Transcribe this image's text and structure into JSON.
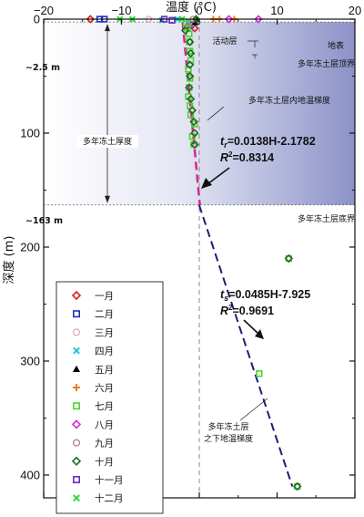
{
  "chart_data": {
    "type": "scatter",
    "xlabel": "温度 (°C)",
    "ylabel": "深度 (m)",
    "xlim": [
      -20,
      20
    ],
    "ylim": [
      0,
      420
    ],
    "x_ticks": [
      "−20",
      "−10",
      "0",
      "10",
      "20"
    ],
    "y_ticks": [
      "0",
      "100",
      "200",
      "300",
      "400"
    ],
    "y_axis_inverted": true,
    "x_axis_position": "top",
    "legend_placement": "bottom-left",
    "shaded_region": {
      "from_depth": 2.5,
      "to_depth": 163,
      "color": "#8c92c8"
    },
    "series": [
      {
        "name": "一月",
        "marker": "diamond-open",
        "color": "#d42020",
        "points": [
          [
            -14,
            0
          ],
          [
            -1.2,
            4
          ],
          [
            -0.6,
            8
          ]
        ]
      },
      {
        "name": "二月",
        "marker": "square-open",
        "color": "#1f2fbf",
        "points": [
          [
            -12.8,
            0
          ],
          [
            -12.2,
            0
          ],
          [
            -1.1,
            5
          ]
        ]
      },
      {
        "name": "三月",
        "marker": "circle-open",
        "color": "#d7a0c8",
        "points": [
          [
            -6.5,
            0
          ],
          [
            -1,
            4
          ]
        ]
      },
      {
        "name": "四月",
        "marker": "x",
        "color": "#18c8d8",
        "points": [
          [
            -4.8,
            1
          ],
          [
            -2.8,
            0
          ],
          [
            -1.4,
            2
          ]
        ]
      },
      {
        "name": "五月",
        "marker": "triangle",
        "color": "#000000",
        "points": [
          [
            -0.3,
            0
          ],
          [
            -0.5,
            3
          ]
        ]
      },
      {
        "name": "六月",
        "marker": "plus",
        "color": "#f07a1a",
        "points": [
          [
            1.8,
            0
          ],
          [
            2.6,
            0
          ],
          [
            4.5,
            0
          ]
        ]
      },
      {
        "name": "七月",
        "marker": "square-open",
        "color": "#4cd431",
        "points": [
          [
            -1.7,
            4
          ],
          [
            -1.5,
            8
          ],
          [
            -1.3,
            13
          ],
          [
            -1.3,
            20
          ],
          [
            -1.2,
            28
          ],
          [
            -1.1,
            36
          ],
          [
            -1.4,
            44
          ],
          [
            -1.2,
            52
          ],
          [
            -1.3,
            60
          ],
          [
            -1.4,
            68
          ],
          [
            -1.2,
            76
          ],
          [
            -1.1,
            84
          ],
          [
            -0.6,
            92
          ],
          [
            -0.9,
            103
          ],
          [
            -0.7,
            110
          ],
          [
            11.5,
            210
          ],
          [
            7.7,
            311
          ],
          [
            12.6,
            410
          ]
        ]
      },
      {
        "name": "八月",
        "marker": "diamond-open",
        "color": "#d72ad7",
        "points": [
          [
            7.6,
            0
          ],
          [
            3.8,
            0
          ]
        ]
      },
      {
        "name": "九月",
        "marker": "circle-open",
        "color": "#b07070",
        "points": [
          [
            -0.8,
            0
          ],
          [
            -1.5,
            6
          ]
        ]
      },
      {
        "name": "十月",
        "marker": "diamond-open",
        "color": "#1d6b1d",
        "points": [
          [
            -0.4,
            0
          ],
          [
            -1.8,
            10
          ],
          [
            -1.2,
            20
          ],
          [
            -1.1,
            30
          ],
          [
            -1.2,
            40
          ],
          [
            -1.2,
            50
          ],
          [
            -1.3,
            60
          ],
          [
            -1.1,
            70
          ],
          [
            -0.9,
            80
          ],
          [
            -0.7,
            90
          ],
          [
            -0.6,
            100
          ],
          [
            -0.6,
            110
          ],
          [
            11.5,
            210
          ],
          [
            12.6,
            410
          ]
        ]
      },
      {
        "name": "十一月",
        "marker": "square-open",
        "color": "#6a2ac4",
        "points": [
          [
            -4.5,
            0
          ],
          [
            -3.5,
            1
          ]
        ]
      },
      {
        "name": "十二月",
        "marker": "x",
        "color": "#2adc36",
        "points": [
          [
            -10.2,
            0
          ],
          [
            -8.6,
            0
          ],
          [
            -2.2,
            0
          ]
        ]
      }
    ],
    "fits": [
      {
        "label": "多年冻土层内地温梯度",
        "equation_main": "t",
        "equation_sub": "r",
        "equation_rest": "=0.0138H-2.1782",
        "r2": "=0.8314",
        "color": "#d9268d",
        "slope": 0.0138,
        "intercept": -2.1782,
        "depth_range": [
          2.5,
          163
        ]
      },
      {
        "label": "多年冻土层之下地温梯度",
        "equation_main": "t",
        "equation_sub": "s",
        "equation_rest": "=0.0485H-7.925",
        "r2": "=0.9691",
        "color": "#1a1f73",
        "slope": 0.0485,
        "intercept": -7.925,
        "depth_range": [
          163,
          410
        ]
      }
    ],
    "annotations": {
      "active_layer": "活动层",
      "surface": "地表",
      "permafrost_top": "多年冻土层顶界",
      "permafrost_bottom": "多年冻土层底界",
      "thickness": "多年冻土厚度",
      "top_depth_label": "~2.5 m",
      "bottom_depth_label": "~163 m",
      "gradient_inside_label": "多年冻土层内地温梯度",
      "gradient_below_label_line1": "多年冻土层",
      "gradient_below_label_line2": "之下地温梯度",
      "r2_prefix": "R",
      "r2_sup": "2"
    }
  }
}
